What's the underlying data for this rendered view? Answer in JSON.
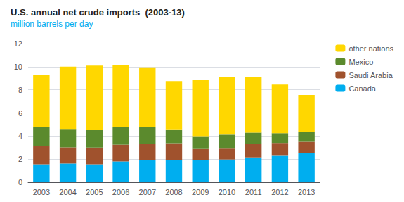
{
  "chart_data": {
    "type": "bar",
    "title": "U.S. annual net crude imports  (2003-13)",
    "subtitle": "million barrels per day",
    "categories": [
      "2003",
      "2004",
      "2005",
      "2006",
      "2007",
      "2008",
      "2009",
      "2010",
      "2011",
      "2012",
      "2013"
    ],
    "series": [
      {
        "name": "Canada",
        "color": "#00AEEF",
        "values": [
          1.55,
          1.62,
          1.55,
          1.8,
          1.9,
          1.93,
          1.94,
          1.97,
          2.15,
          2.35,
          2.5
        ]
      },
      {
        "name": "Saudi Arabia",
        "color": "#A0522D",
        "values": [
          1.55,
          1.4,
          1.45,
          1.45,
          1.4,
          1.45,
          1.0,
          1.0,
          1.15,
          1.05,
          1.0
        ]
      },
      {
        "name": "Mexico",
        "color": "#5B8A2D",
        "values": [
          1.65,
          1.6,
          1.55,
          1.55,
          1.45,
          1.2,
          1.05,
          1.15,
          1.0,
          0.85,
          0.85
        ]
      },
      {
        "name": "other nations",
        "color": "#FFD700",
        "values": [
          4.55,
          5.38,
          5.55,
          5.35,
          5.2,
          4.18,
          4.9,
          5.0,
          4.8,
          4.2,
          3.2
        ]
      }
    ],
    "ylim": [
      0,
      12
    ],
    "yticks": [
      0,
      2,
      4,
      6,
      8,
      10,
      12
    ],
    "stacked": true,
    "grid": true,
    "legend": "right"
  }
}
